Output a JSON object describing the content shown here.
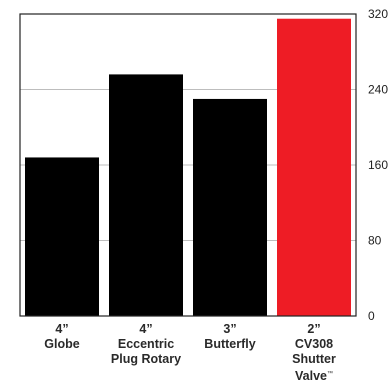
{
  "chart_data": {
    "type": "bar",
    "categories": [
      [
        "4”",
        "Globe"
      ],
      [
        "4”",
        "Eccentric",
        "Plug Rotary"
      ],
      [
        "3”",
        "Butterfly"
      ],
      [
        "2”",
        "CV308",
        "Shutter",
        "Valve"
      ]
    ],
    "values": [
      168,
      256,
      230,
      315
    ],
    "colors": [
      "#000000",
      "#000000",
      "#000000",
      "#ee1c25"
    ],
    "ylim": [
      0,
      320
    ],
    "yticks": [
      "0",
      "80",
      "160",
      "240",
      "320"
    ],
    "ytick_values": [
      0,
      80,
      160,
      240,
      320
    ],
    "trademark": "™",
    "grid": true,
    "axis_position": "right"
  }
}
